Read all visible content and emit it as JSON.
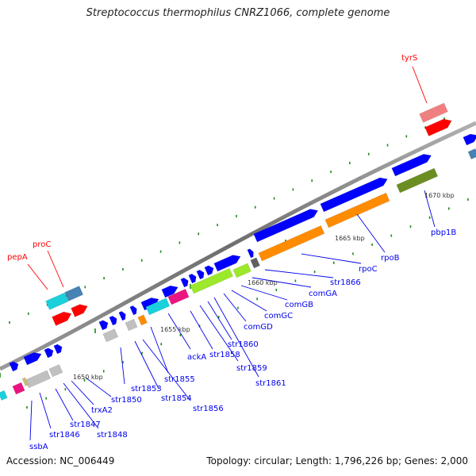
{
  "title": "Streptococcus thermophilus CNRZ1066, complete genome",
  "footer": {
    "accession": "Accession: NC_006449",
    "summary": "Topology: circular; Length: 1,796,226 bp; Genes: 2,000"
  },
  "ruler_labels": [
    "1650 kbp",
    "1655 kbp",
    "1660 kbp",
    "1665 kbp",
    "1670 kbp"
  ],
  "gene_labels": {
    "trna": [
      "pepA",
      "proC",
      "tyrS"
    ],
    "cds": [
      "ssbA",
      "str1846",
      "str1847",
      "str1848",
      "trxA2",
      "str1850",
      "str1853",
      "str1854",
      "str1855",
      "str1856",
      "ackA",
      "str1858",
      "str1859",
      "str1860",
      "str1861",
      "comGD",
      "comGC",
      "comGB",
      "comGA",
      "str1866",
      "rpoC",
      "rpoB",
      "pbp1B"
    ]
  },
  "colors": {
    "backbone": "#808080",
    "cds": "#0000ff",
    "trna_label": "#ff0000",
    "tick": "#1a8a1a",
    "orange": "#ff8c00",
    "cyan": "#1ad0dc",
    "magenta": "#ea1580",
    "lightgreen": "#9ce82a",
    "olive": "#6b8e23",
    "steelblue": "#4682b4",
    "red": "#ff0000",
    "pink": "#f08080",
    "gray": "#c0c0c0",
    "darkgray": "#606060",
    "khaki": "#c8c070"
  }
}
